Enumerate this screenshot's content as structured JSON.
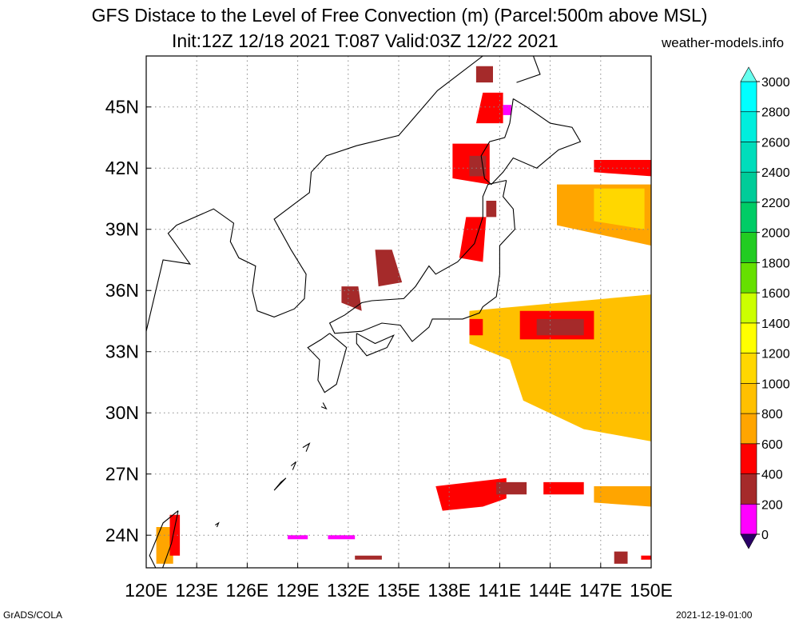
{
  "title": {
    "line1": "GFS Distace to the Level of Free Convection (m) (Parcel:500m above MSL)",
    "line2": "Init:12Z 12/18 2021 T:087 Valid:03Z 12/22 2021",
    "site": "weather-models.info"
  },
  "footer": {
    "left": "GrADS/COLA",
    "right": "2021-12-19-01:00"
  },
  "map": {
    "lon_labels": [
      "120E",
      "123E",
      "126E",
      "129E",
      "132E",
      "135E",
      "138E",
      "141E",
      "144E",
      "147E",
      "150E"
    ],
    "lat_labels": [
      "45N",
      "42N",
      "39N",
      "36N",
      "33N",
      "30N",
      "27N",
      "24N"
    ],
    "lon_range": [
      120,
      150
    ],
    "lat_range": [
      22.4,
      47.5
    ],
    "grid": "dotted"
  },
  "colorbar": {
    "labels": [
      "0",
      "200",
      "400",
      "600",
      "800",
      "1000",
      "1200",
      "1400",
      "1600",
      "1800",
      "2000",
      "2200",
      "2400",
      "2600",
      "2800",
      "3000"
    ],
    "colors": [
      "#3b0a8a",
      "#ff00ff",
      "#a52a2a",
      "#ff0000",
      "#ffa500",
      "#ffc000",
      "#ffd700",
      "#ffff00",
      "#ccff00",
      "#66e000",
      "#22cc22",
      "#00cc66",
      "#00cc99",
      "#00ddbb",
      "#00eedd",
      "#00ffff"
    ],
    "over_color": "#66ffee",
    "under_color": "#2a0066"
  },
  "fields": [
    {
      "name": "n-japan-sea-brown",
      "color": "#a52a2a",
      "lonlat": [
        [
          139.6,
          47.0
        ],
        [
          140.6,
          47.0
        ],
        [
          140.6,
          46.2
        ],
        [
          139.6,
          46.2
        ]
      ]
    },
    {
      "name": "sakhalin-red",
      "color": "#ff0000",
      "lonlat": [
        [
          140.0,
          45.7
        ],
        [
          141.2,
          45.7
        ],
        [
          141.2,
          44.2
        ],
        [
          139.6,
          44.2
        ]
      ]
    },
    {
      "name": "sakhalin-magenta",
      "color": "#ff00ff",
      "lonlat": [
        [
          141.2,
          45.1
        ],
        [
          141.7,
          45.1
        ],
        [
          141.7,
          44.6
        ],
        [
          141.2,
          44.6
        ]
      ]
    },
    {
      "name": "hokkaido-w-red",
      "color": "#ff0000",
      "lonlat": [
        [
          138.2,
          43.2
        ],
        [
          140.4,
          43.2
        ],
        [
          140.4,
          41.2
        ],
        [
          138.2,
          41.5
        ]
      ]
    },
    {
      "name": "hokkaido-w-brown",
      "color": "#a52a2a",
      "lonlat": [
        [
          139.2,
          42.6
        ],
        [
          140.2,
          42.6
        ],
        [
          140.2,
          41.6
        ],
        [
          139.2,
          41.6
        ]
      ]
    },
    {
      "name": "tohoku-red",
      "color": "#ff0000",
      "lonlat": [
        [
          139.0,
          39.6
        ],
        [
          140.2,
          39.6
        ],
        [
          140.0,
          37.4
        ],
        [
          138.6,
          37.6
        ]
      ]
    },
    {
      "name": "tohoku-brown",
      "color": "#a52a2a",
      "lonlat": [
        [
          140.2,
          40.4
        ],
        [
          140.8,
          40.4
        ],
        [
          140.8,
          39.6
        ],
        [
          140.2,
          39.6
        ]
      ]
    },
    {
      "name": "japan-sea-brown",
      "color": "#a52a2a",
      "lonlat": [
        [
          133.6,
          38.0
        ],
        [
          134.6,
          38.0
        ],
        [
          135.2,
          36.4
        ],
        [
          133.8,
          36.2
        ]
      ]
    },
    {
      "name": "japan-sea-brown-2",
      "color": "#a52a2a",
      "lonlat": [
        [
          131.6,
          36.2
        ],
        [
          132.6,
          36.2
        ],
        [
          132.8,
          35.0
        ],
        [
          131.6,
          35.4
        ]
      ]
    },
    {
      "name": "e-42n-red",
      "color": "#ff0000",
      "lonlat": [
        [
          146.6,
          42.4
        ],
        [
          150.0,
          42.4
        ],
        [
          150.0,
          41.6
        ],
        [
          146.6,
          41.8
        ]
      ]
    },
    {
      "name": "e-40n-orange",
      "color": "#ffa500",
      "lonlat": [
        [
          144.4,
          41.2
        ],
        [
          150.0,
          41.2
        ],
        [
          150.0,
          38.2
        ],
        [
          144.4,
          39.2
        ]
      ]
    },
    {
      "name": "e-40n-yellow",
      "color": "#ffd700",
      "lonlat": [
        [
          146.6,
          41.0
        ],
        [
          149.6,
          41.0
        ],
        [
          149.6,
          39.0
        ],
        [
          146.6,
          39.4
        ]
      ]
    },
    {
      "name": "e-35n-yellow",
      "color": "#ffc000",
      "lonlat": [
        [
          139.2,
          35.0
        ],
        [
          150.0,
          35.8
        ],
        [
          150.0,
          28.6
        ],
        [
          146.0,
          29.2
        ],
        [
          142.4,
          30.6
        ],
        [
          141.6,
          32.6
        ],
        [
          139.2,
          33.4
        ]
      ]
    },
    {
      "name": "e-34n-red",
      "color": "#ff0000",
      "lonlat": [
        [
          142.2,
          35.0
        ],
        [
          146.6,
          35.0
        ],
        [
          146.6,
          33.6
        ],
        [
          142.2,
          33.6
        ]
      ]
    },
    {
      "name": "e-34n-brown",
      "color": "#a52a2a",
      "lonlat": [
        [
          143.2,
          34.6
        ],
        [
          146.0,
          34.6
        ],
        [
          146.0,
          33.8
        ],
        [
          143.2,
          33.8
        ]
      ]
    },
    {
      "name": "e-34n-red-w",
      "color": "#ff0000",
      "lonlat": [
        [
          139.2,
          34.6
        ],
        [
          140.0,
          34.6
        ],
        [
          140.0,
          33.8
        ],
        [
          139.2,
          33.8
        ]
      ]
    },
    {
      "name": "s-26n-red",
      "color": "#ff0000",
      "lonlat": [
        [
          137.2,
          26.4
        ],
        [
          141.4,
          26.8
        ],
        [
          141.4,
          25.8
        ],
        [
          140.0,
          25.4
        ],
        [
          137.6,
          25.2
        ]
      ]
    },
    {
      "name": "s-26n-brown",
      "color": "#a52a2a",
      "lonlat": [
        [
          140.8,
          26.6
        ],
        [
          142.6,
          26.6
        ],
        [
          142.6,
          26.0
        ],
        [
          140.8,
          26.0
        ]
      ]
    },
    {
      "name": "s-26n-red-e",
      "color": "#ff0000",
      "lonlat": [
        [
          143.6,
          26.6
        ],
        [
          146.0,
          26.6
        ],
        [
          146.0,
          26.0
        ],
        [
          143.6,
          26.0
        ]
      ]
    },
    {
      "name": "s-26n-orange",
      "color": "#ffa500",
      "lonlat": [
        [
          146.6,
          26.4
        ],
        [
          150.0,
          26.4
        ],
        [
          150.0,
          25.4
        ],
        [
          146.6,
          25.6
        ]
      ]
    },
    {
      "name": "taiwan-orange",
      "color": "#ffa500",
      "lonlat": [
        [
          120.6,
          24.4
        ],
        [
          121.6,
          24.4
        ],
        [
          121.6,
          22.6
        ],
        [
          120.6,
          22.6
        ]
      ]
    },
    {
      "name": "taiwan-red",
      "color": "#ff0000",
      "lonlat": [
        [
          121.4,
          25.0
        ],
        [
          122.0,
          25.0
        ],
        [
          122.0,
          23.0
        ],
        [
          121.4,
          23.0
        ]
      ]
    },
    {
      "name": "ryukyu-magenta",
      "color": "#ff00ff",
      "lonlat": [
        [
          128.4,
          24.0
        ],
        [
          129.6,
          24.0
        ],
        [
          129.6,
          23.8
        ],
        [
          128.4,
          23.8
        ]
      ]
    },
    {
      "name": "ryukyu-magenta-2",
      "color": "#ff00ff",
      "lonlat": [
        [
          130.8,
          24.0
        ],
        [
          132.4,
          24.0
        ],
        [
          132.4,
          23.8
        ],
        [
          130.8,
          23.8
        ]
      ]
    },
    {
      "name": "s-23n-brown",
      "color": "#a52a2a",
      "lonlat": [
        [
          132.4,
          23.0
        ],
        [
          134.0,
          23.0
        ],
        [
          134.0,
          22.8
        ],
        [
          132.4,
          22.8
        ]
      ]
    },
    {
      "name": "se-brown",
      "color": "#a52a2a",
      "lonlat": [
        [
          147.8,
          23.2
        ],
        [
          148.6,
          23.2
        ],
        [
          148.6,
          22.6
        ],
        [
          147.8,
          22.6
        ]
      ]
    },
    {
      "name": "se-red",
      "color": "#ff0000",
      "lonlat": [
        [
          149.4,
          23.0
        ],
        [
          150.0,
          23.0
        ],
        [
          150.0,
          22.8
        ],
        [
          149.4,
          22.8
        ]
      ]
    }
  ],
  "coast": [
    [
      [
        120,
        34.0
      ],
      [
        121.0,
        37.5
      ],
      [
        122.6,
        37.3
      ],
      [
        121.3,
        38.8
      ],
      [
        121.8,
        39.2
      ],
      [
        124.0,
        40.0
      ],
      [
        125.2,
        39.3
      ],
      [
        125.0,
        38.4
      ],
      [
        125.5,
        37.6
      ],
      [
        126.5,
        37.2
      ],
      [
        126.3,
        36.0
      ],
      [
        126.6,
        35.0
      ],
      [
        127.6,
        34.7
      ],
      [
        128.8,
        35.1
      ],
      [
        129.4,
        35.6
      ],
      [
        129.5,
        36.8
      ],
      [
        128.6,
        38.0
      ],
      [
        127.6,
        39.5
      ],
      [
        129.7,
        40.8
      ],
      [
        129.8,
        41.8
      ],
      [
        130.7,
        42.6
      ],
      [
        132.5,
        43.1
      ],
      [
        135.0,
        43.6
      ],
      [
        137.3,
        45.8
      ],
      [
        140.0,
        47.5
      ]
    ],
    [
      [
        141.8,
        45.4
      ],
      [
        141.6,
        44.2
      ],
      [
        141.3,
        43.5
      ],
      [
        140.4,
        43.3
      ],
      [
        139.9,
        42.6
      ],
      [
        140.1,
        41.5
      ],
      [
        140.5,
        41.2
      ],
      [
        141.2,
        41.8
      ],
      [
        141.8,
        42.5
      ],
      [
        143.2,
        42.0
      ],
      [
        144.5,
        42.9
      ],
      [
        145.8,
        43.3
      ],
      [
        145.3,
        44.0
      ],
      [
        144.0,
        44.2
      ],
      [
        142.6,
        45.0
      ],
      [
        141.8,
        45.4
      ]
    ],
    [
      [
        141.4,
        41.4
      ],
      [
        141.2,
        40.6
      ],
      [
        141.8,
        40.0
      ],
      [
        141.9,
        39.0
      ],
      [
        141.0,
        38.2
      ],
      [
        141.0,
        36.8
      ],
      [
        140.8,
        35.7
      ],
      [
        140.0,
        35.2
      ],
      [
        139.8,
        34.9
      ],
      [
        138.8,
        34.6
      ],
      [
        137.0,
        34.6
      ],
      [
        136.8,
        34.2
      ],
      [
        135.8,
        33.5
      ],
      [
        135.1,
        34.3
      ],
      [
        134.0,
        34.4
      ],
      [
        132.8,
        34.0
      ],
      [
        131.2,
        33.9
      ],
      [
        130.9,
        34.4
      ],
      [
        131.8,
        34.8
      ],
      [
        132.8,
        35.4
      ],
      [
        133.4,
        35.5
      ],
      [
        135.3,
        35.6
      ],
      [
        136.0,
        36.2
      ],
      [
        136.8,
        37.2
      ],
      [
        137.2,
        36.8
      ],
      [
        138.5,
        37.4
      ],
      [
        139.5,
        38.3
      ],
      [
        140.0,
        39.6
      ],
      [
        140.0,
        40.6
      ],
      [
        140.3,
        41.2
      ],
      [
        141.4,
        41.4
      ]
    ],
    [
      [
        130.9,
        33.9
      ],
      [
        131.9,
        33.2
      ],
      [
        131.3,
        31.4
      ],
      [
        130.6,
        31.0
      ],
      [
        130.2,
        31.6
      ],
      [
        130.3,
        32.6
      ],
      [
        129.6,
        33.2
      ],
      [
        130.4,
        33.6
      ],
      [
        130.9,
        33.9
      ]
    ],
    [
      [
        132.5,
        33.9
      ],
      [
        133.6,
        33.4
      ],
      [
        134.7,
        33.8
      ],
      [
        134.3,
        33.2
      ],
      [
        133.1,
        32.8
      ],
      [
        132.5,
        33.4
      ],
      [
        132.5,
        33.9
      ]
    ],
    [
      [
        142.0,
        46.2
      ],
      [
        143.4,
        46.6
      ],
      [
        143.0,
        47.5
      ]
    ],
    [
      [
        121.9,
        25.2
      ],
      [
        121.0,
        24.6
      ],
      [
        120.2,
        23.0
      ],
      [
        120.8,
        22.0
      ],
      [
        121.5,
        23.6
      ],
      [
        121.9,
        25.2
      ]
    ],
    [
      [
        127.6,
        26.2
      ],
      [
        128.3,
        26.8
      ],
      [
        128.0,
        26.6
      ],
      [
        127.6,
        26.2
      ]
    ],
    [
      [
        129.3,
        28.3
      ],
      [
        129.7,
        28.5
      ],
      [
        129.5,
        28.1
      ]
    ],
    [
      [
        124.2,
        24.4
      ],
      [
        124.3,
        24.6
      ],
      [
        124.1,
        24.5
      ]
    ],
    [
      [
        128.6,
        27.4
      ],
      [
        128.9,
        27.6
      ],
      [
        128.7,
        27.2
      ]
    ],
    [
      [
        130.5,
        30.5
      ],
      [
        130.7,
        30.2
      ],
      [
        130.4,
        30.3
      ]
    ]
  ]
}
